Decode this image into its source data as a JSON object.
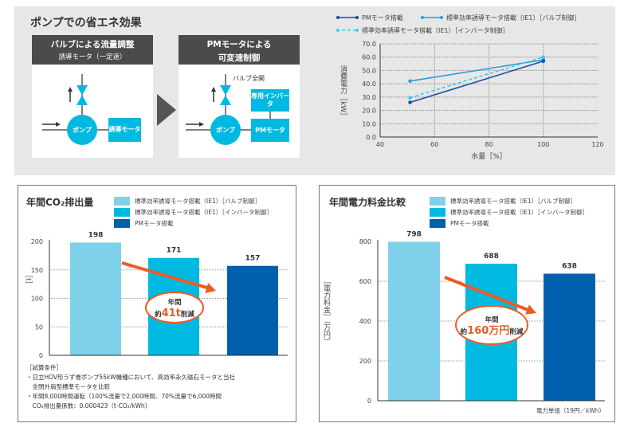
{
  "top_section": {
    "title": "ポンプでの省エネ効果",
    "left_box": {
      "title": "バルブによる流量調整",
      "subtitle": "誘導モータ（一定速）",
      "pump": "ポンプ",
      "motor": "誘導モータ"
    },
    "right_box": {
      "title_line1": "PMモータによる",
      "title_line2": "可変速制御",
      "valve_label": "バルブ全開",
      "inverter": "専用インバータ",
      "pump": "ポンプ",
      "motor": "PMモータ"
    },
    "arrow_icon": "triangle-right"
  },
  "colors": {
    "valve": "#7fd1ea",
    "inverter": "#00b9e0",
    "pm": "#0060ad",
    "line_pm": "#1d4f9e",
    "line_valve": "#2a9fd6",
    "line_inverter": "#3ccbea",
    "highlight": "#ee5a24"
  },
  "chart_data": [
    {
      "type": "line",
      "xlabel": "水量［%］",
      "ylabel": "消費電力［kW］",
      "xlim": [
        40,
        120
      ],
      "ylim": [
        0,
        70
      ],
      "x_ticks": [
        "40",
        "60",
        "80",
        "100",
        "120"
      ],
      "y_ticks": [
        "0.0",
        "10.0",
        "20.0",
        "30.0",
        "40.0",
        "50.0",
        "60.0",
        "70.0"
      ],
      "grid": true,
      "legend": "top",
      "series": [
        {
          "name": "PMモータ搭載",
          "x": [
            51,
            100
          ],
          "y": [
            26,
            57
          ],
          "style": "solid"
        },
        {
          "name": "標準効率誘導モータ搭載（IE1）［バルブ制御］",
          "x": [
            51,
            100
          ],
          "y": [
            42,
            58
          ],
          "style": "solid"
        },
        {
          "name": "標準効率誘導モータ搭載（IE1）［インバータ制御］",
          "x": [
            51,
            100
          ],
          "y": [
            29.5,
            60
          ],
          "style": "dashed"
        }
      ]
    },
    {
      "type": "bar",
      "title": "年間CO₂排出量",
      "ylabel": "［t］",
      "ylim": [
        0,
        200
      ],
      "y_ticks": [
        "0",
        "50",
        "100",
        "150",
        "200"
      ],
      "grid": true,
      "legend": "top-right",
      "series": [
        {
          "name": "標準効率誘導モータ搭載（IE1）［バルブ制御］",
          "value": 198,
          "label": "198"
        },
        {
          "name": "標準効率誘導モータ搭載（IE1）［インバータ制御］",
          "value": 171,
          "label": "171"
        },
        {
          "name": "PMモータ搭載",
          "value": 157,
          "label": "157"
        }
      ],
      "annotation": {
        "line1": "年間",
        "prefix": "約",
        "amount": "41t",
        "suffix": "削減"
      }
    },
    {
      "type": "bar",
      "title": "年間電力料金比較",
      "ylabel": "［電力料金］（万円）",
      "ylim": [
        0,
        800
      ],
      "y_ticks": [
        "0",
        "200",
        "400",
        "600",
        "800"
      ],
      "grid": true,
      "legend": "top-right",
      "series": [
        {
          "name": "標準効率誘導モータ搭載（IE1）［バルブ制御］",
          "value": 798,
          "label": "798"
        },
        {
          "name": "標準効率誘導モータ搭載（IE1）［インバータ制御］",
          "value": 688,
          "label": "688"
        },
        {
          "name": "PMモータ搭載",
          "value": 638,
          "label": "638"
        }
      ],
      "annotation": {
        "line1": "年間",
        "prefix": "約",
        "amount": "160万円",
        "suffix": "削減"
      },
      "footnote": "電力単価（19円／kWh）"
    }
  ],
  "notes": {
    "heading": "［試算条件］",
    "items": [
      "・日立HOV形うず巻ポンプ55kW機種において、高効率永久磁石モータと当社",
      "　全閉外扇型標準モータを比較",
      "・年間8,000時間運転（100%流量で2,000時間、70%流量で6,000時間",
      "　CO₂排出量係数：0.000423（t-CO₂/kWh）"
    ]
  }
}
